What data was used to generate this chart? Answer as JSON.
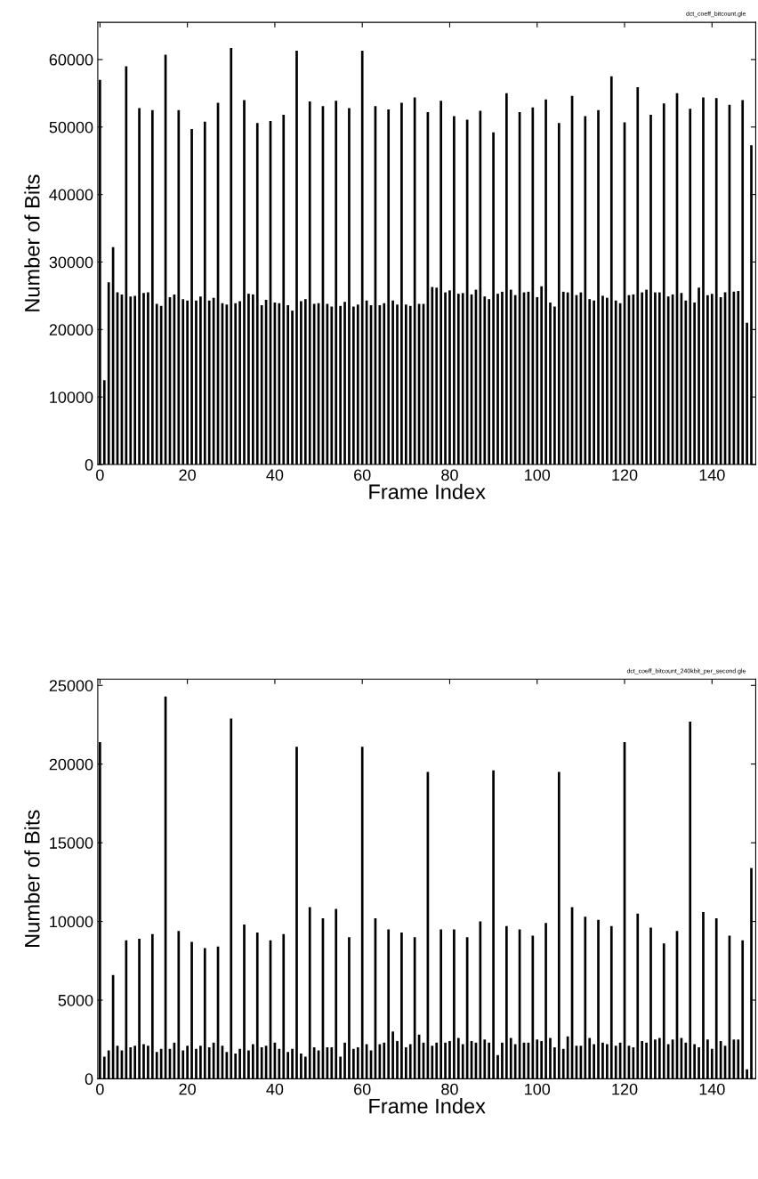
{
  "chart_data": [
    {
      "type": "bar",
      "xlabel": "Frame Index",
      "ylabel": "Number of Bits",
      "annotations": [
        "dct_coeff_bitcount.gle"
      ],
      "xlim": [
        -0.5,
        150
      ],
      "xticks": [
        0,
        20,
        40,
        60,
        80,
        100,
        120,
        140
      ],
      "ylim": [
        0,
        65500
      ],
      "yticks": [
        0,
        10000,
        20000,
        30000,
        40000,
        50000,
        60000
      ],
      "grid": false,
      "series": [
        {
          "color": "#000000",
          "x": [
            0,
            1,
            2,
            3,
            4,
            5,
            6,
            7,
            8,
            9,
            10,
            11,
            12,
            13,
            14,
            15,
            16,
            17,
            18,
            19,
            20,
            21,
            22,
            23,
            24,
            25,
            26,
            27,
            28,
            29,
            30,
            31,
            32,
            33,
            34,
            35,
            36,
            37,
            38,
            39,
            40,
            41,
            42,
            43,
            44,
            45,
            46,
            47,
            48,
            49,
            50,
            51,
            52,
            53,
            54,
            55,
            56,
            57,
            58,
            59,
            60,
            61,
            62,
            63,
            64,
            65,
            66,
            67,
            68,
            69,
            70,
            71,
            72,
            73,
            74,
            75,
            76,
            77,
            78,
            79,
            80,
            81,
            82,
            83,
            84,
            85,
            86,
            87,
            88,
            89,
            90,
            91,
            92,
            93,
            94,
            95,
            96,
            97,
            98,
            99,
            100,
            101,
            102,
            103,
            104,
            105,
            106,
            107,
            108,
            109,
            110,
            111,
            112,
            113,
            114,
            115,
            116,
            117,
            118,
            119,
            120,
            121,
            122,
            123,
            124,
            125,
            126,
            127,
            128,
            129,
            130,
            131,
            132,
            133,
            134,
            135,
            136,
            137,
            138,
            139,
            140,
            141,
            142,
            143,
            144,
            145,
            146,
            147,
            148,
            149
          ],
          "values": [
            57000,
            12500,
            27000,
            32200,
            25500,
            25200,
            59000,
            24900,
            25000,
            52800,
            25400,
            25500,
            52500,
            23800,
            23500,
            60700,
            24800,
            25200,
            52500,
            24500,
            24300,
            49700,
            24300,
            24900,
            50800,
            24300,
            24700,
            53600,
            23900,
            23700,
            61700,
            23900,
            24200,
            54000,
            25300,
            25200,
            50600,
            23600,
            24400,
            50900,
            24000,
            23900,
            51800,
            23600,
            22800,
            61300,
            24200,
            24500,
            53800,
            23800,
            23900,
            53100,
            23800,
            23400,
            53900,
            23500,
            24100,
            52800,
            23400,
            23700,
            61300,
            24300,
            23600,
            53100,
            23600,
            23900,
            52600,
            24300,
            23700,
            53600,
            23700,
            23500,
            54400,
            23800,
            23800,
            52200,
            26300,
            26200,
            53900,
            25500,
            25800,
            51600,
            25300,
            25400,
            51100,
            25200,
            25900,
            52400,
            24900,
            24500,
            49200,
            25300,
            25600,
            55000,
            25900,
            25100,
            52200,
            25500,
            25600,
            52900,
            24800,
            26400,
            54100,
            24000,
            23400,
            50600,
            25600,
            25500,
            54600,
            25100,
            25500,
            51600,
            24500,
            24300,
            52500,
            25000,
            24700,
            57500,
            24300,
            23900,
            50700,
            25100,
            25200,
            55900,
            25500,
            25900,
            51800,
            25500,
            25500,
            53500,
            24900,
            25200,
            55000,
            25400,
            24300,
            52700,
            24000,
            26200,
            54400,
            25100,
            25300,
            54300,
            24800,
            25500,
            53300,
            25600,
            25700,
            54000,
            21000,
            47300
          ]
        }
      ]
    },
    {
      "type": "bar",
      "xlabel": "Frame Index",
      "ylabel": "Number of Bits",
      "annotations": [
        "dct_coeff_bitcount_240kbit_per_second.gle"
      ],
      "xlim": [
        -0.5,
        150
      ],
      "xticks": [
        0,
        20,
        40,
        60,
        80,
        100,
        120,
        140
      ],
      "ylim": [
        0,
        25400
      ],
      "yticks": [
        0,
        5000,
        10000,
        15000,
        20000,
        25000
      ],
      "grid": false,
      "series": [
        {
          "color": "#000000",
          "x": [
            0,
            1,
            2,
            3,
            4,
            5,
            6,
            7,
            8,
            9,
            10,
            11,
            12,
            13,
            14,
            15,
            16,
            17,
            18,
            19,
            20,
            21,
            22,
            23,
            24,
            25,
            26,
            27,
            28,
            29,
            30,
            31,
            32,
            33,
            34,
            35,
            36,
            37,
            38,
            39,
            40,
            41,
            42,
            43,
            44,
            45,
            46,
            47,
            48,
            49,
            50,
            51,
            52,
            53,
            54,
            55,
            56,
            57,
            58,
            59,
            60,
            61,
            62,
            63,
            64,
            65,
            66,
            67,
            68,
            69,
            70,
            71,
            72,
            73,
            74,
            75,
            76,
            77,
            78,
            79,
            80,
            81,
            82,
            83,
            84,
            85,
            86,
            87,
            88,
            89,
            90,
            91,
            92,
            93,
            94,
            95,
            96,
            97,
            98,
            99,
            100,
            101,
            102,
            103,
            104,
            105,
            106,
            107,
            108,
            109,
            110,
            111,
            112,
            113,
            114,
            115,
            116,
            117,
            118,
            119,
            120,
            121,
            122,
            123,
            124,
            125,
            126,
            127,
            128,
            129,
            130,
            131,
            132,
            133,
            134,
            135,
            136,
            137,
            138,
            139,
            140,
            141,
            142,
            143,
            144,
            145,
            146,
            147,
            148,
            149
          ],
          "values": [
            21400,
            1400,
            1800,
            6600,
            2100,
            1800,
            8800,
            2000,
            2100,
            8900,
            2200,
            2100,
            9200,
            1700,
            1900,
            24300,
            1900,
            2300,
            9400,
            1800,
            2100,
            8700,
            1900,
            2100,
            8300,
            2000,
            2300,
            8400,
            2100,
            1700,
            22900,
            1600,
            1900,
            9800,
            1800,
            2200,
            9300,
            2000,
            2100,
            8800,
            2300,
            1900,
            9200,
            1700,
            1900,
            21100,
            1600,
            1400,
            10900,
            2000,
            1800,
            10200,
            2000,
            2000,
            10800,
            1400,
            2300,
            9000,
            1900,
            2000,
            21100,
            2200,
            1800,
            10200,
            2200,
            2300,
            9500,
            3000,
            2400,
            9300,
            2000,
            2200,
            9000,
            2800,
            2300,
            19500,
            2100,
            2300,
            9500,
            2300,
            2400,
            9500,
            2600,
            2200,
            9000,
            2400,
            2300,
            10000,
            2500,
            2300,
            19600,
            1500,
            2300,
            9700,
            2600,
            2200,
            9500,
            2300,
            2300,
            9100,
            2500,
            2400,
            9900,
            2600,
            2000,
            19500,
            1900,
            2700,
            10900,
            2100,
            2100,
            10300,
            2600,
            2200,
            10100,
            2300,
            2200,
            9700,
            2100,
            2300,
            21400,
            2100,
            2000,
            10500,
            2400,
            2300,
            9600,
            2500,
            2600,
            8600,
            2200,
            2500,
            9400,
            2600,
            2300,
            22700,
            2200,
            2000,
            10600,
            2500,
            1900,
            10200,
            2400,
            2100,
            9100,
            2500,
            2500,
            8800,
            600,
            13400
          ]
        }
      ]
    }
  ]
}
